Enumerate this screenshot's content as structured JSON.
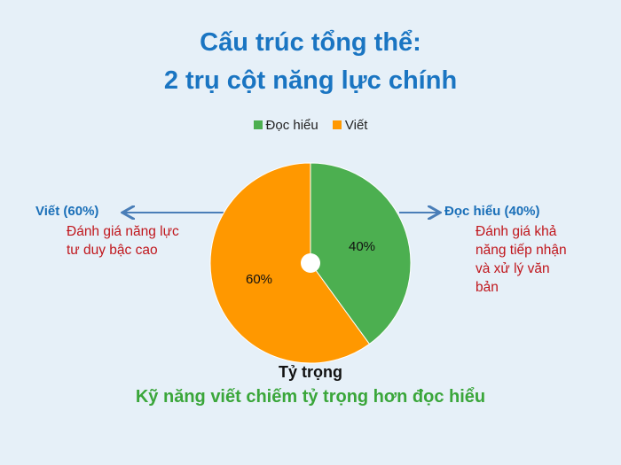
{
  "title": {
    "line1": "Cấu trúc tổng thể:",
    "line2": "2 trụ cột năng lực chính"
  },
  "chart_data": {
    "type": "pie",
    "categories": [
      "Đọc hiểu",
      "Viết"
    ],
    "values": [
      40,
      60
    ],
    "data_labels": [
      "40%",
      "60%"
    ],
    "colors": [
      "#4caf50",
      "#ff9800"
    ],
    "legend_placement": "top",
    "title": "Tỷ trọng"
  },
  "left_note": {
    "title": "Viết (60%)",
    "desc": "Đánh giá năng lực tư duy bậc cao"
  },
  "right_note": {
    "title": "Đọc hiểu (40%)",
    "desc": "Đánh giá khả năng tiếp nhận và xử lý văn bản"
  },
  "conclusion": "Kỹ năng viết chiếm tỷ trọng hơn đọc hiểu"
}
